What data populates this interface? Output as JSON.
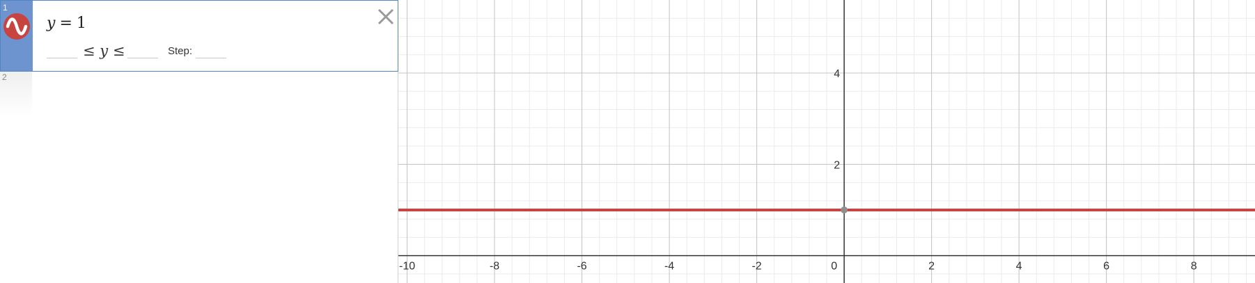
{
  "expression_list": {
    "expressions": [
      {
        "index": "1",
        "lhs": "y",
        "operator": "=",
        "rhs": "1",
        "color": "#c74440",
        "icon": "wave-icon",
        "bounds": {
          "lower": "",
          "variable": "y",
          "upper": "",
          "step_label": "Step:",
          "step": ""
        }
      },
      {
        "index": "2"
      }
    ],
    "close_icon": "close-icon"
  },
  "chart_data": {
    "type": "line",
    "xlim": [
      -10.2,
      9.4
    ],
    "ylim": [
      -0.6,
      5.6
    ],
    "grid": true,
    "minor_grid": true,
    "x_ticks": [
      -10,
      -8,
      -6,
      -4,
      -2,
      0,
      2,
      4,
      6,
      8
    ],
    "y_ticks": [
      2,
      4
    ],
    "x_tick_labels": [
      "-10",
      "-8",
      "-6",
      "-4",
      "-2",
      "0",
      "2",
      "4",
      "6",
      "8"
    ],
    "y_tick_labels": [
      "2",
      "4"
    ],
    "series": [
      {
        "x": [
          -10.2,
          9.4
        ],
        "y": [
          1,
          1
        ],
        "color": "#c74440"
      }
    ],
    "points": [
      {
        "x": 0,
        "y": 1,
        "color": "#8e8e8e"
      }
    ]
  }
}
